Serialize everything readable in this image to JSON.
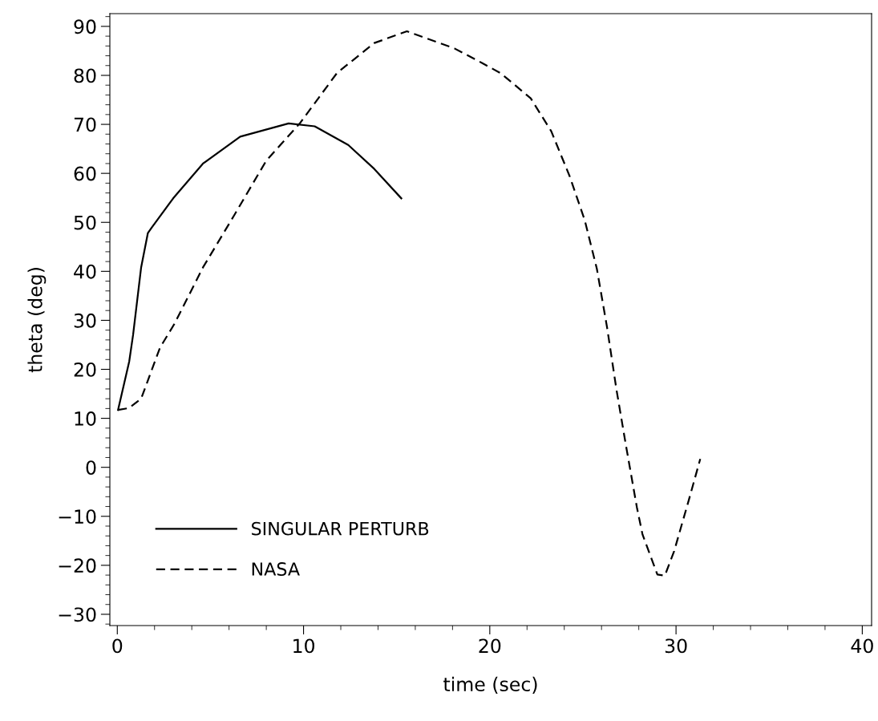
{
  "chart_data": {
    "type": "line",
    "xlabel": "time (sec)",
    "ylabel": "theta (deg)",
    "xlim": [
      -0.4,
      40.5
    ],
    "xticks": [
      0,
      10,
      20,
      30,
      40
    ],
    "ylim": [
      -32.3,
      92.6
    ],
    "yticks": [
      -30,
      -20,
      -10,
      0,
      10,
      20,
      30,
      40,
      50,
      60,
      70,
      80,
      90
    ],
    "grid": false,
    "legend": "bottom left",
    "marker": "none",
    "series": [
      {
        "name": "SINGULAR PERTURB",
        "color": "#000000",
        "line_style": "solid",
        "x": [
          0.04,
          0.64,
          0.85,
          1.28,
          1.64,
          1.86,
          3.0,
          4.6,
          6.6,
          9.2,
          10.6,
          12.4,
          13.8,
          15.25
        ],
        "values": [
          11.7,
          21.6,
          27.1,
          40.8,
          47.8,
          49,
          54.9,
          62,
          67.5,
          70.2,
          69.6,
          65.8,
          60.9,
          54.9
        ]
      },
      {
        "name": "NASA",
        "color": "#000000",
        "line_style": "dashed",
        "x": [
          0.04,
          0.63,
          1.28,
          2.29,
          3.07,
          4.6,
          6.3,
          8.0,
          9.8,
          11.8,
          13.8,
          15.55,
          18.1,
          19.6,
          20.6,
          22.2,
          23.3,
          24.3,
          25.1,
          25.75,
          26.3,
          26.8,
          27.3,
          27.9,
          28.2,
          29.0,
          29.4,
          29.9,
          30.7,
          31.3
        ],
        "values": [
          11.7,
          12.1,
          14,
          24.4,
          29.3,
          40.8,
          51.6,
          62.6,
          70.2,
          80.5,
          86.6,
          89,
          85.5,
          82.5,
          80.4,
          75.3,
          68.6,
          59.3,
          50.4,
          40.5,
          28.5,
          15.9,
          4.7,
          -8.2,
          -13.7,
          -21.9,
          -22.1,
          -17.1,
          -6.5,
          1.7
        ]
      }
    ]
  }
}
